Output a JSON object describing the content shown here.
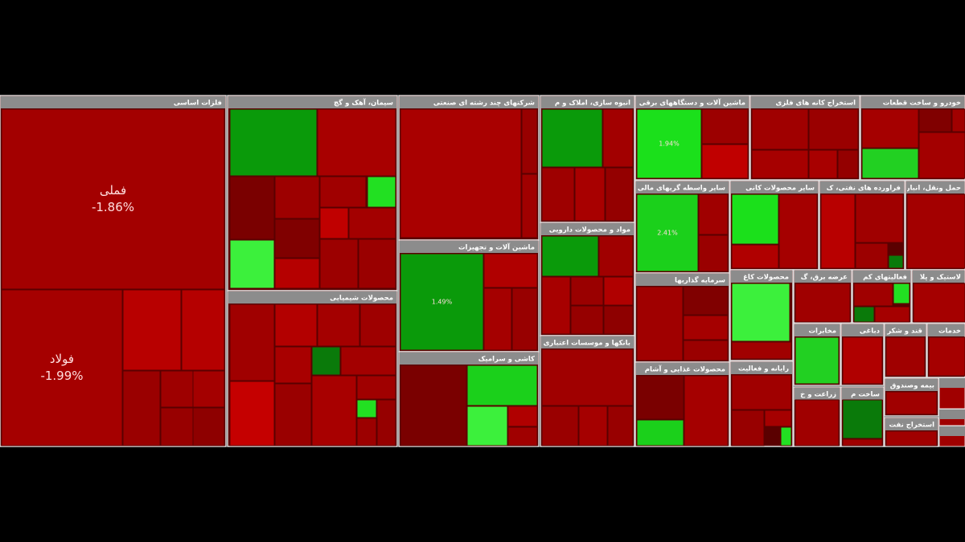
{
  "sectors": [
    {
      "title": "فلزات اساسی",
      "tiles": [
        {
          "name": "فملی",
          "change": "-1.86%"
        },
        {
          "name": "فولاد",
          "change": "-1.99%"
        }
      ]
    },
    {
      "title": "سیمان، آهک و گچ"
    },
    {
      "title": "محصولات شیمیایی"
    },
    {
      "title": "شرکتهای چند رشته ای صنعتی"
    },
    {
      "title": "ماشین آلات و تجهیزات",
      "tiles": [
        {
          "change": "1.49%"
        }
      ]
    },
    {
      "title": "کاشی و سرامیک"
    },
    {
      "title": "انبوه سازی، املاک و م"
    },
    {
      "title": "مواد و محصولات دارویی"
    },
    {
      "title": "بانکها و موسسات اعتباری"
    },
    {
      "title": "ماشین آلات و دستگاههای برقی",
      "tiles": [
        {
          "change": "1.94%"
        }
      ]
    },
    {
      "title": "استخراج کانه های فلزی"
    },
    {
      "title": "خودرو و ساخت قطعات"
    },
    {
      "title": "سایر واسطه گریهای مالی",
      "tiles": [
        {
          "change": "2.41%"
        }
      ]
    },
    {
      "title": "سایر محصولات کانی"
    },
    {
      "title": "فراورده های نفتی، ک"
    },
    {
      "title": "حمل ونقل، انبار"
    },
    {
      "title": "سرمایه گذاریها"
    },
    {
      "title": "محصولات کاغ"
    },
    {
      "title": "عرضه برق، گ"
    },
    {
      "title": "فعالیتهای کم"
    },
    {
      "title": "لاستیک و پلا"
    },
    {
      "title": "محصولات غذایی و آشام"
    },
    {
      "title": "رایانه و فعالیت"
    },
    {
      "title": "مخابرات"
    },
    {
      "title": "دباغی"
    },
    {
      "title": "قند و شکر"
    },
    {
      "title": "خدمات"
    },
    {
      "title": "زراعت و خ"
    },
    {
      "title": "ساخت م"
    },
    {
      "title": "بیمه وصندوق"
    },
    {
      "title": "استخراج نفت"
    }
  ]
}
